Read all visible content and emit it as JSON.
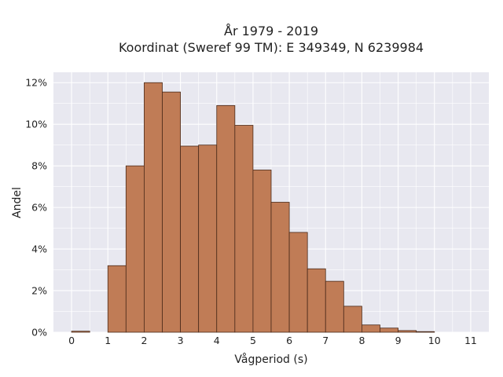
{
  "chart_data": {
    "type": "bar",
    "title_line1": "År 1979 - 2019",
    "title_line2": "Koordinat (Sweref 99 TM): E 349349, N 6239984",
    "xlabel": "Vågperiod (s)",
    "ylabel": "Andel",
    "bin_width": 0.5,
    "bin_starts": [
      0,
      0.5,
      1,
      1.5,
      2,
      2.5,
      3,
      3.5,
      4,
      4.5,
      5,
      5.5,
      6,
      6.5,
      7,
      7.5,
      8,
      8.5,
      9,
      9.5,
      10,
      10.5,
      11
    ],
    "values": [
      0.05,
      0,
      3.2,
      8.0,
      12.0,
      11.55,
      8.95,
      9.0,
      10.9,
      9.95,
      7.8,
      6.25,
      4.8,
      3.05,
      2.45,
      1.25,
      0.35,
      0.2,
      0.08,
      0.03,
      0,
      0,
      0
    ],
    "xlim": [
      -0.5,
      11.5
    ],
    "ylim": [
      0,
      12.5
    ],
    "x_ticks": [
      "0",
      "1",
      "2",
      "3",
      "4",
      "5",
      "6",
      "7",
      "8",
      "9",
      "10",
      "11"
    ],
    "y_ticks": [
      "0%",
      "2%",
      "4%",
      "6%",
      "8%",
      "10%",
      "12%"
    ],
    "grid": true,
    "colors": {
      "bar_fill": "#c07c56",
      "bar_edge": "#4a2a1a",
      "plot_bg": "#e8e8f0",
      "grid": "#ffffff"
    }
  }
}
